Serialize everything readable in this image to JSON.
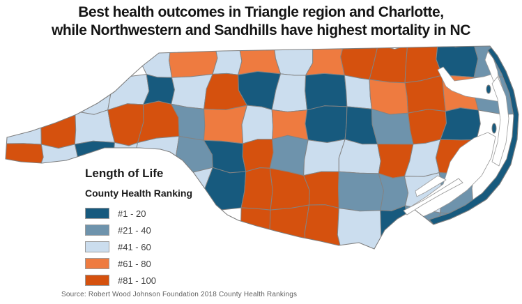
{
  "title": {
    "line1": "Best health outcomes in Triangle region and Charlotte,",
    "line2": "while Northwestern and Sandhills have highest mortality in NC"
  },
  "legend": {
    "title": "Length of Life",
    "subtitle": "County Health Ranking",
    "items": [
      {
        "label": "#1 - 20",
        "color": "#175A7E"
      },
      {
        "label": "#21 - 40",
        "color": "#6E93AC"
      },
      {
        "label": "#41 - 60",
        "color": "#CBDDEE"
      },
      {
        "label": "#61 - 80",
        "color": "#EE7B40"
      },
      {
        "label": "#81 - 100",
        "color": "#D5510E"
      }
    ]
  },
  "source": "Source: Robert Wood Johnson Foundation 2018 County Health Rankings",
  "map": {
    "region": "North Carolina",
    "water_color": "#ffffff",
    "border_color": "#838383",
    "grid": [
      [
        0,
        0,
        0,
        0,
        3,
        4,
        3,
        4,
        3,
        4,
        5,
        5,
        5,
        1,
        2
      ],
      [
        0,
        0,
        3,
        3,
        1,
        3,
        5,
        1,
        3,
        1,
        3,
        4,
        5,
        4,
        2
      ],
      [
        3,
        5,
        3,
        5,
        5,
        2,
        4,
        3,
        4,
        1,
        1,
        2,
        5,
        1,
        0
      ],
      [
        5,
        3,
        1,
        3,
        3,
        2,
        1,
        5,
        2,
        3,
        3,
        5,
        3,
        5,
        0
      ],
      [
        0,
        0,
        0,
        0,
        0,
        3,
        1,
        5,
        5,
        5,
        2,
        2,
        3,
        2,
        0
      ],
      [
        0,
        0,
        0,
        0,
        0,
        0,
        0,
        5,
        5,
        5,
        3,
        1,
        2,
        2,
        0
      ]
    ]
  },
  "chart_data": {
    "type": "choropleth",
    "geography": "North Carolina counties",
    "measure": "Length of Life — County Health Ranking",
    "title": "Best health outcomes in Triangle region and Charlotte, while Northwestern and Sandhills have highest mortality in NC",
    "legend_position": "bottom-left",
    "classes": [
      {
        "rank_range": [
          1,
          20
        ],
        "label": "#1 - 20",
        "color": "#175A7E"
      },
      {
        "rank_range": [
          21,
          40
        ],
        "label": "#21 - 40",
        "color": "#6E93AC"
      },
      {
        "rank_range": [
          41,
          60
        ],
        "label": "#41 - 60",
        "color": "#CBDDEE"
      },
      {
        "rank_range": [
          61,
          80
        ],
        "label": "#61 - 80",
        "color": "#EE7B40"
      },
      {
        "rank_range": [
          81,
          100
        ],
        "label": "#81 - 100",
        "color": "#D5510E"
      }
    ],
    "regional_pattern": {
      "best_rank_1_20": [
        "Triangle region (Raleigh-Durham, dark blue cluster center-east)",
        "Charlotte (dark blue, south-central)",
        "coastal Outer Banks strip"
      ],
      "worst_rank_81_100": [
        "Northwestern counties (dark orange cluster, northwest)",
        "Sandhills (large dark orange cluster, south-central)"
      ],
      "grid_note": "map.grid holds legend class 1-5 per mosaic cell (row = north to south band, column = west to east); 0 = no land / water"
    },
    "source": "Robert Wood Johnson Foundation 2018 County Health Rankings"
  }
}
